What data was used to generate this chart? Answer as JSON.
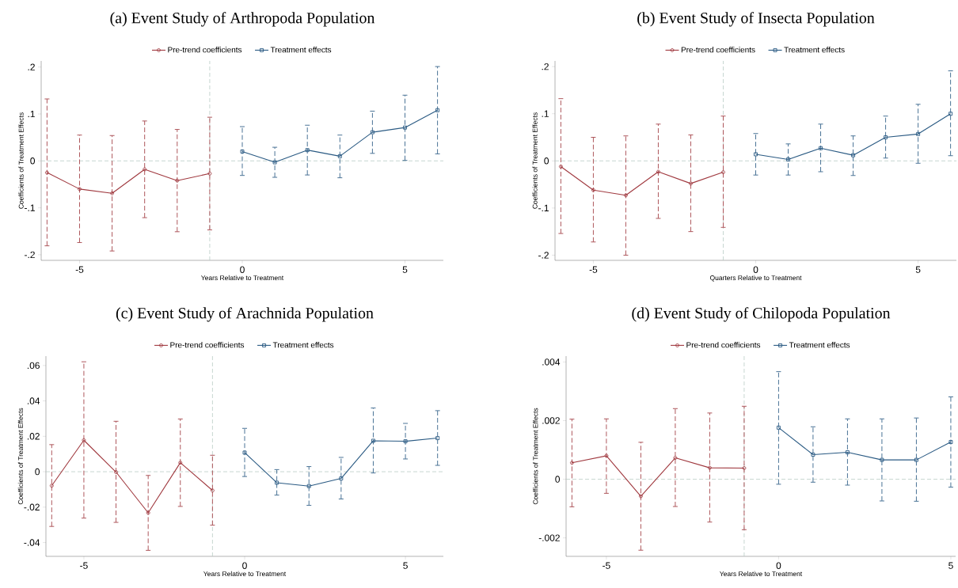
{
  "chart_data": [
    {
      "type": "line",
      "title": "(a) Event Study of Arthropoda Population",
      "xlabel": "Years Relative to Treatment",
      "ylabel": "Coefficients of Treatment Effects",
      "legend": "top",
      "xlim": [
        -6.18,
        6.18
      ],
      "ylim": [
        -0.212,
        0.213
      ],
      "xticks": [
        -5,
        0,
        5
      ],
      "yticks": [
        {
          "value": -0.2,
          "label": "-.2"
        },
        {
          "value": -0.1,
          "label": "-.1"
        },
        0,
        {
          "value": 0.1,
          "label": ".1"
        },
        {
          "value": 0.2,
          "label": ".2"
        }
      ],
      "ref_lines": [
        {
          "axis": "y",
          "value": 0,
          "color": "#b9cbc5",
          "line_style": "dashed"
        },
        {
          "axis": "x",
          "value": -1,
          "color": "#b9cbc5",
          "line_style": "dashed"
        }
      ],
      "series": [
        {
          "name": "Pre-trend coefficients",
          "color": "#a0393f",
          "marker": "circle",
          "x": [
            -6,
            -5,
            -4,
            -3,
            -2,
            -1
          ],
          "values": [
            -0.025,
            -0.06,
            -0.069,
            -0.018,
            -0.042,
            -0.027
          ],
          "errors": [
            [
              -0.181,
              0.132
            ],
            [
              -0.174,
              0.055
            ],
            [
              -0.192,
              0.054
            ],
            [
              -0.121,
              0.085
            ],
            [
              -0.151,
              0.067
            ],
            [
              -0.147,
              0.093
            ]
          ]
        },
        {
          "name": "Treatment effects",
          "color": "#2a5a83",
          "marker": "square",
          "x": [
            0,
            1,
            2,
            3,
            4,
            5,
            6
          ],
          "values": [
            0.02,
            -0.003,
            0.023,
            0.01,
            0.061,
            0.071,
            0.108
          ],
          "errors": [
            [
              -0.031,
              0.073
            ],
            [
              -0.035,
              0.029
            ],
            [
              -0.03,
              0.076
            ],
            [
              -0.036,
              0.055
            ],
            [
              0.016,
              0.106
            ],
            [
              0.001,
              0.14
            ],
            [
              0.015,
              0.201
            ]
          ]
        }
      ]
    },
    {
      "type": "line",
      "title": "(b) Event Study of Insecta Population",
      "xlabel": "Quarters Relative to Treatment",
      "ylabel": "Coefficients of Treatment Effects",
      "legend": "top",
      "xlim": [
        -6.18,
        6.18
      ],
      "ylim": [
        -0.211,
        0.212
      ],
      "xticks": [
        -5,
        0,
        5
      ],
      "yticks": [
        {
          "value": -0.2,
          "label": "-.2"
        },
        {
          "value": -0.1,
          "label": "-.1"
        },
        0,
        {
          "value": 0.1,
          "label": ".1"
        },
        {
          "value": 0.2,
          "label": ".2"
        }
      ],
      "ref_lines": [
        {
          "axis": "y",
          "value": 0,
          "color": "#b9cbc5",
          "line_style": "dashed"
        },
        {
          "axis": "x",
          "value": -1,
          "color": "#b9cbc5",
          "line_style": "dashed"
        }
      ],
      "series": [
        {
          "name": "Pre-trend coefficients",
          "color": "#a0393f",
          "marker": "circle",
          "x": [
            -6,
            -5,
            -4,
            -3,
            -2,
            -1
          ],
          "values": [
            -0.012,
            -0.062,
            -0.073,
            -0.023,
            -0.048,
            -0.024
          ],
          "errors": [
            [
              -0.154,
              0.132
            ],
            [
              -0.172,
              0.05
            ],
            [
              -0.2,
              0.053
            ],
            [
              -0.122,
              0.078
            ],
            [
              -0.15,
              0.055
            ],
            [
              -0.141,
              0.095
            ]
          ]
        },
        {
          "name": "Treatment effects",
          "color": "#2a5a83",
          "marker": "square",
          "x": [
            0,
            1,
            2,
            3,
            4,
            5,
            6
          ],
          "values": [
            0.014,
            0.003,
            0.027,
            0.012,
            0.05,
            0.057,
            0.1
          ],
          "errors": [
            [
              -0.03,
              0.058
            ],
            [
              -0.03,
              0.036
            ],
            [
              -0.023,
              0.078
            ],
            [
              -0.031,
              0.053
            ],
            [
              0.006,
              0.095
            ],
            [
              -0.005,
              0.12
            ],
            [
              0.011,
              0.191
            ]
          ]
        }
      ]
    },
    {
      "type": "line",
      "title": "(c) Event Study of Arachnida Population",
      "xlabel": "Years Relative to Treatment",
      "ylabel": "Coefficients of Treatment Effects",
      "legend": "top",
      "xlim": [
        -6.18,
        6.18
      ],
      "ylim": [
        -0.0478,
        0.0653
      ],
      "xticks": [
        -5,
        0,
        5
      ],
      "yticks": [
        {
          "value": -0.04,
          "label": "-.04"
        },
        {
          "value": -0.02,
          "label": "-.02"
        },
        0,
        {
          "value": 0.02,
          "label": ".02"
        },
        {
          "value": 0.04,
          "label": ".04"
        },
        {
          "value": 0.06,
          "label": ".06"
        }
      ],
      "ref_lines": [
        {
          "axis": "y",
          "value": 0,
          "color": "#b9cbc5",
          "line_style": "dashed"
        },
        {
          "axis": "x",
          "value": -1,
          "color": "#b9cbc5",
          "line_style": "dashed"
        }
      ],
      "series": [
        {
          "name": "Pre-trend coefficients",
          "color": "#a0393f",
          "marker": "circle",
          "x": [
            -6,
            -5,
            -4,
            -3,
            -2,
            -1
          ],
          "values": [
            -0.0079,
            0.0178,
            -0.0002,
            -0.0232,
            0.0051,
            -0.0106
          ],
          "errors": [
            [
              -0.0309,
              0.0153
            ],
            [
              -0.0262,
              0.0621
            ],
            [
              -0.0286,
              0.0285
            ],
            [
              -0.0444,
              -0.0021
            ],
            [
              -0.0196,
              0.0298
            ],
            [
              -0.0302,
              0.0093
            ]
          ]
        },
        {
          "name": "Treatment effects",
          "color": "#2a5a83",
          "marker": "square",
          "x": [
            0,
            1,
            2,
            3,
            4,
            5,
            6
          ],
          "values": [
            0.0108,
            -0.0062,
            -0.0081,
            -0.0038,
            0.0175,
            0.0172,
            0.019
          ],
          "errors": [
            [
              -0.0027,
              0.0245
            ],
            [
              -0.0132,
              0.0012
            ],
            [
              -0.019,
              0.0029
            ],
            [
              -0.0154,
              0.0081
            ],
            [
              -0.0007,
              0.036
            ],
            [
              0.0072,
              0.0273
            ],
            [
              0.0036,
              0.0345
            ]
          ]
        }
      ]
    },
    {
      "type": "line",
      "title": "(d) Event Study of Chilopoda Population",
      "xlabel": "Years Relative to Treatment",
      "ylabel": "Coefficients of Treatment Effects",
      "legend": "top",
      "xlim": [
        -6.17,
        5.14
      ],
      "ylim": [
        -0.00263,
        0.0042
      ],
      "xticks": [
        -5,
        0,
        5
      ],
      "yticks": [
        {
          "value": -0.002,
          "label": "-.002"
        },
        0,
        {
          "value": 0.002,
          "label": ".002"
        },
        {
          "value": 0.004,
          "label": ".004"
        }
      ],
      "ref_lines": [
        {
          "axis": "y",
          "value": 0,
          "color": "#b9cbc5",
          "line_style": "dashed"
        },
        {
          "axis": "x",
          "value": -1,
          "color": "#b9cbc5",
          "line_style": "dashed"
        }
      ],
      "series": [
        {
          "name": "Pre-trend coefficients",
          "color": "#a0393f",
          "marker": "circle",
          "x": [
            -6,
            -5,
            -4,
            -3,
            -2,
            -1
          ],
          "values": [
            0.00056,
            0.0008,
            -0.00058,
            0.00073,
            0.00039,
            0.00038
          ],
          "errors": [
            [
              -0.00094,
              0.00205
            ],
            [
              -0.00048,
              0.00206
            ],
            [
              -0.00242,
              0.00126
            ],
            [
              -0.00093,
              0.00241
            ],
            [
              -0.00146,
              0.00226
            ],
            [
              -0.00172,
              0.00249
            ]
          ]
        },
        {
          "name": "Treatment effects",
          "color": "#2a5a83",
          "marker": "square",
          "x": [
            0,
            1,
            2,
            3,
            4,
            5
          ],
          "values": [
            0.00176,
            0.00084,
            0.00092,
            0.00066,
            0.00066,
            0.00127
          ],
          "errors": [
            [
              -0.00017,
              0.00367
            ],
            [
              -0.0001,
              0.00179
            ],
            [
              -0.0002,
              0.00206
            ],
            [
              -0.00074,
              0.00206
            ],
            [
              -0.00075,
              0.00209
            ],
            [
              -0.00027,
              0.00281
            ]
          ]
        }
      ]
    }
  ]
}
